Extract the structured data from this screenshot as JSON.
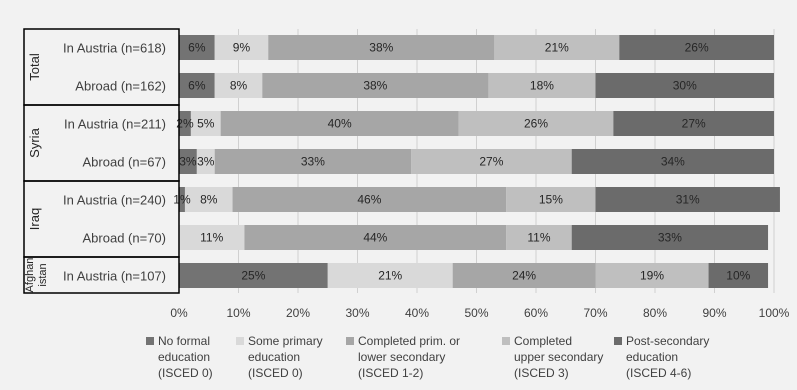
{
  "chart_data": {
    "type": "bar",
    "orientation": "horizontal",
    "stacked": true,
    "percent": true,
    "xlim": [
      0,
      100
    ],
    "xticks": [
      "0%",
      "10%",
      "20%",
      "30%",
      "40%",
      "50%",
      "60%",
      "70%",
      "80%",
      "90%",
      "100%"
    ],
    "grid": true,
    "legend_position": "bottom",
    "groups": [
      {
        "label": "Total",
        "rows": [
          "In Austria (n=618)",
          "Abroad (n=162)"
        ]
      },
      {
        "label": "Syria",
        "rows": [
          "In Austria (n=211)",
          "Abroad (n=67)"
        ]
      },
      {
        "label": "Iraq",
        "rows": [
          "In Austria (n=240)",
          "Abroad (n=70)"
        ]
      },
      {
        "label": "Afghan istan",
        "lines": [
          "Afghan",
          "istan"
        ],
        "rows": [
          "In Austria (n=107)"
        ]
      }
    ],
    "categories": [
      "In Austria (n=618)",
      "Abroad (n=162)",
      "In Austria (n=211)",
      "Abroad (n=67)",
      "In Austria (n=240)",
      "Abroad (n=70)",
      "In Austria (n=107)"
    ],
    "series": [
      {
        "name": "No formal education (ISCED 0)",
        "lines": [
          "No formal",
          "education",
          "(ISCED 0)"
        ],
        "color": "#737373",
        "values": [
          6,
          6,
          2,
          3,
          1,
          0,
          25
        ],
        "labels": [
          "6%",
          "6%",
          "2%",
          "3%",
          "1%",
          "",
          "25%"
        ]
      },
      {
        "name": "Some primary education (ISCED 0)",
        "lines": [
          "Some primary",
          "education",
          "(ISCED 0)"
        ],
        "color": "#d9d9d9",
        "values": [
          9,
          8,
          5,
          3,
          8,
          11,
          21
        ],
        "labels": [
          "9%",
          "8%",
          "5%",
          "3%",
          "8%",
          "11%",
          "21%"
        ]
      },
      {
        "name": "Completed prim. or lower secondary (ISCED 1-2)",
        "lines": [
          "Completed prim. or",
          "lower secondary",
          "(ISCED 1-2)"
        ],
        "color": "#a6a6a6",
        "values": [
          38,
          38,
          40,
          33,
          46,
          44,
          24
        ],
        "labels": [
          "38%",
          "38%",
          "40%",
          "33%",
          "46%",
          "44%",
          "24%"
        ]
      },
      {
        "name": "Completed upper secondary (ISCED 3)",
        "lines": [
          "Completed",
          "upper secondary",
          "(ISCED 3)"
        ],
        "color": "#bfbfbf",
        "values": [
          21,
          18,
          26,
          27,
          15,
          11,
          19
        ],
        "labels": [
          "21%",
          "18%",
          "26%",
          "27%",
          "15%",
          "11%",
          "19%"
        ]
      },
      {
        "name": "Post-secondary education (ISCED 4-6)",
        "lines": [
          "Post-secondary",
          "education",
          "(ISCED 4-6)"
        ],
        "color": "#6b6b6b",
        "values": [
          26,
          30,
          27,
          34,
          31,
          33,
          10
        ],
        "labels": [
          "26%",
          "30%",
          "27%",
          "34%",
          "31%",
          "33%",
          "10%"
        ]
      }
    ]
  }
}
